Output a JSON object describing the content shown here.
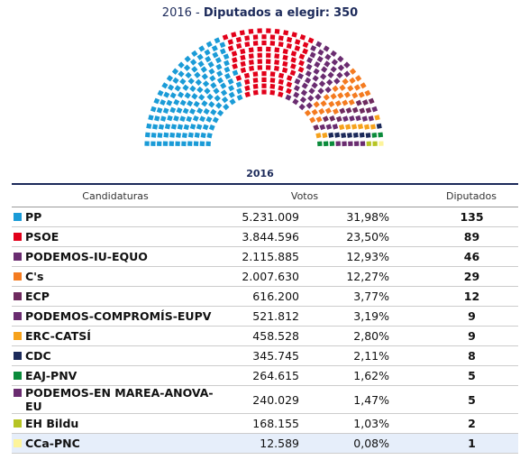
{
  "header": {
    "lead": "2016 -",
    "label": "Diputados a elegir:",
    "total": 350
  },
  "table": {
    "caption": "2016",
    "columns": [
      "Candidaturas",
      "Votos",
      "Diputados"
    ],
    "rows": [
      {
        "name": "PP",
        "color": "#1a9bd7",
        "votes": "5.231.009",
        "pct": "31,98%",
        "seats": 135
      },
      {
        "name": "PSOE",
        "color": "#e2001a",
        "votes": "3.844.596",
        "pct": "23,50%",
        "seats": 89
      },
      {
        "name": "PODEMOS-IU-EQUO",
        "color": "#6a2c70",
        "votes": "2.115.885",
        "pct": "12,93%",
        "seats": 46
      },
      {
        "name": "C's",
        "color": "#f47b20",
        "votes": "2.007.630",
        "pct": "12,27%",
        "seats": 29
      },
      {
        "name": "ECP",
        "color": "#6e2a5e",
        "votes": "616.200",
        "pct": "3,77%",
        "seats": 12
      },
      {
        "name": "PODEMOS-COMPROMÍS-EUPV",
        "color": "#6a2c70",
        "votes": "521.812",
        "pct": "3,19%",
        "seats": 9
      },
      {
        "name": "ERC-CATSÍ",
        "color": "#f6a21c",
        "votes": "458.528",
        "pct": "2,80%",
        "seats": 9
      },
      {
        "name": "CDC",
        "color": "#1c2a5a",
        "votes": "345.745",
        "pct": "2,11%",
        "seats": 8
      },
      {
        "name": "EAJ-PNV",
        "color": "#0b8b3b",
        "votes": "264.615",
        "pct": "1,62%",
        "seats": 5
      },
      {
        "name": "PODEMOS-EN MAREA-ANOVA-EU",
        "color": "#6a2c70",
        "votes": "240.029",
        "pct": "1,47%",
        "seats": 5
      },
      {
        "name": "EH Bildu",
        "color": "#b6c424",
        "votes": "168.155",
        "pct": "1,03%",
        "seats": 2
      },
      {
        "name": "CCa-PNC",
        "color": "#fdf49b",
        "votes": "12.589",
        "pct": "0,08%",
        "seats": 1
      }
    ]
  }
}
